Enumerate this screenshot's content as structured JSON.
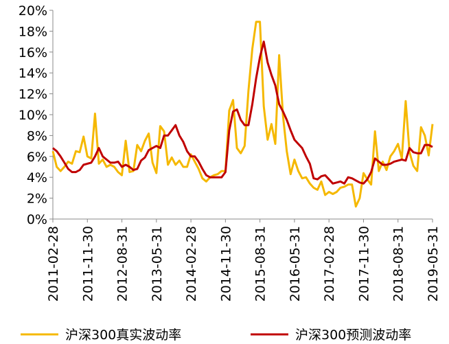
{
  "chart_data": {
    "type": "line",
    "categories": [
      "2011-02-28",
      null,
      null,
      null,
      null,
      null,
      null,
      null,
      null,
      "2011-11-30",
      null,
      null,
      null,
      null,
      null,
      null,
      null,
      null,
      "2012-08-31",
      null,
      null,
      null,
      null,
      null,
      null,
      null,
      null,
      "2013-05-31",
      null,
      null,
      null,
      null,
      null,
      null,
      null,
      null,
      "2014-02-28",
      null,
      null,
      null,
      null,
      null,
      null,
      null,
      null,
      "2014-11-30",
      null,
      null,
      null,
      null,
      null,
      null,
      null,
      null,
      "2015-08-31",
      null,
      null,
      null,
      null,
      null,
      null,
      null,
      null,
      "2016-05-31",
      null,
      null,
      null,
      null,
      null,
      null,
      null,
      null,
      "2017-02-28",
      null,
      null,
      null,
      null,
      null,
      null,
      null,
      null,
      "2017-11-30",
      null,
      null,
      null,
      null,
      null,
      null,
      null,
      null,
      "2018-08-31",
      null,
      null,
      null,
      null,
      null,
      null,
      null,
      null,
      "2019-05-31"
    ],
    "series": [
      {
        "name": "沪深300真实波动率",
        "color": "#f5b800",
        "values": [
          6.5,
          5.0,
          4.6,
          5.0,
          5.5,
          5.3,
          6.5,
          6.4,
          7.9,
          6.0,
          5.8,
          10.1,
          5.3,
          5.7,
          5.0,
          5.2,
          5.0,
          4.5,
          4.2,
          7.5,
          4.5,
          4.6,
          7.1,
          6.5,
          7.5,
          8.2,
          5.4,
          4.4,
          8.9,
          8.4,
          5.2,
          5.9,
          5.2,
          5.6,
          5.0,
          5.0,
          6.2,
          5.5,
          4.8,
          3.9,
          3.6,
          4.0,
          4.2,
          4.3,
          4.6,
          4.6,
          10.4,
          11.4,
          6.8,
          6.3,
          7.0,
          12.3,
          16.3,
          18.9,
          18.9,
          10.8,
          7.6,
          9.1,
          7.2,
          15.7,
          9.9,
          6.5,
          4.3,
          5.7,
          4.6,
          3.9,
          4.0,
          3.4,
          3.0,
          2.8,
          3.6,
          2.3,
          2.6,
          2.4,
          2.6,
          3.0,
          3.1,
          3.3,
          3.3,
          1.2,
          2.0,
          4.4,
          3.8,
          3.3,
          8.4,
          4.6,
          5.5,
          4.7,
          6.0,
          6.5,
          7.2,
          5.8,
          11.3,
          6.4,
          5.1,
          4.6,
          8.8,
          8.0,
          6.1,
          9.1
        ]
      },
      {
        "name": "沪深300预测波动率",
        "color": "#c00000",
        "values": [
          6.8,
          6.5,
          6.0,
          5.4,
          4.8,
          4.5,
          4.5,
          4.7,
          5.2,
          5.3,
          5.4,
          6.0,
          6.8,
          6.0,
          5.7,
          5.4,
          5.4,
          5.5,
          5.0,
          5.2,
          5.0,
          4.7,
          4.8,
          5.6,
          5.9,
          6.6,
          6.8,
          7.0,
          6.8,
          8.0,
          8.0,
          8.5,
          9.0,
          8.0,
          7.4,
          6.5,
          6.0,
          6.0,
          5.5,
          4.8,
          4.2,
          4.0,
          4.0,
          4.0,
          4.0,
          4.5,
          8.5,
          10.3,
          10.5,
          9.5,
          9.0,
          9.0,
          11.0,
          13.5,
          15.5,
          17.0,
          15.0,
          13.8,
          12.8,
          11.0,
          10.3,
          9.5,
          8.5,
          7.6,
          7.2,
          6.8,
          6.0,
          5.3,
          3.9,
          3.8,
          4.1,
          4.2,
          3.8,
          3.4,
          3.5,
          3.6,
          3.4,
          4.0,
          3.9,
          3.7,
          3.5,
          3.4,
          3.8,
          4.5,
          5.8,
          5.5,
          5.2,
          5.2,
          5.3,
          5.5,
          5.6,
          5.7,
          5.6,
          6.8,
          6.4,
          6.3,
          6.3,
          7.1,
          7.1,
          6.9
        ]
      }
    ],
    "ylim": [
      0,
      20
    ],
    "yticks": [
      {
        "value": 0,
        "label": "0%"
      },
      {
        "value": 2,
        "label": "2%"
      },
      {
        "value": 4,
        "label": "4%"
      },
      {
        "value": 6,
        "label": "6%"
      },
      {
        "value": 8,
        "label": "8%"
      },
      {
        "value": 10,
        "label": "10%"
      },
      {
        "value": 12,
        "label": "12%"
      },
      {
        "value": 14,
        "label": "14%"
      },
      {
        "value": 16,
        "label": "16%"
      },
      {
        "value": 18,
        "label": "18%"
      },
      {
        "value": 20,
        "label": "20%"
      }
    ],
    "grid": false,
    "legend": "bottom"
  }
}
